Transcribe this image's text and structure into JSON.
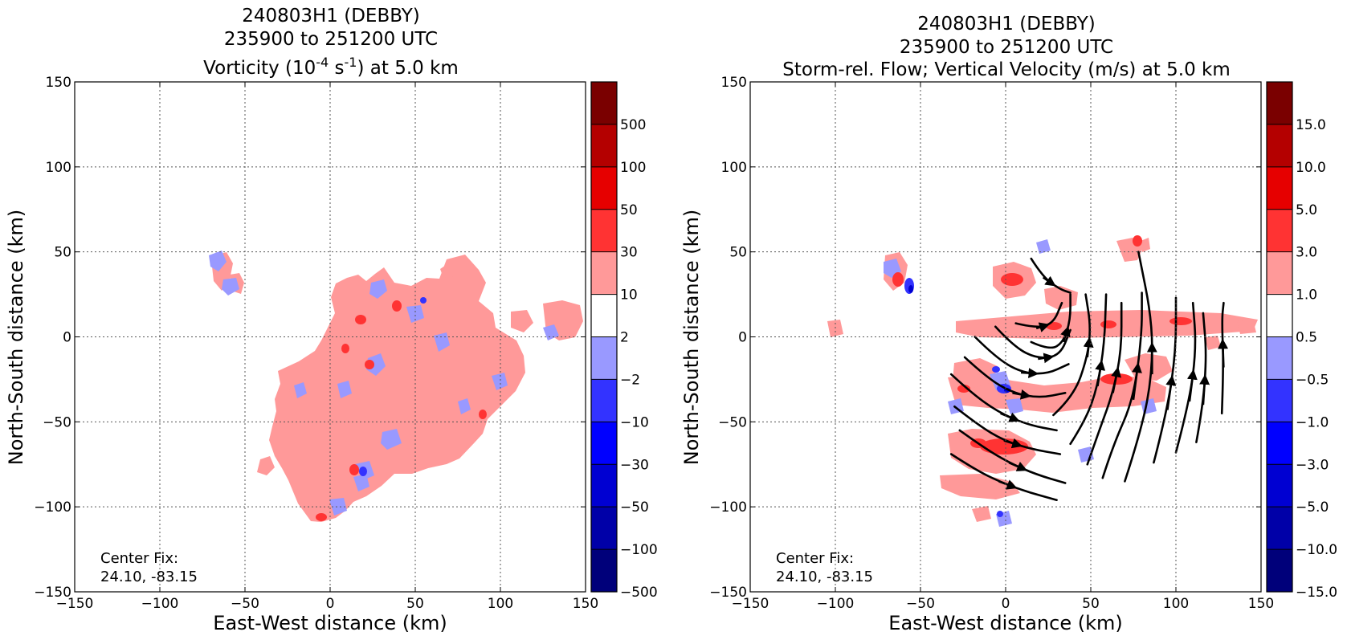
{
  "chart_data": [
    {
      "type": "heatmap",
      "title_lines": [
        "240803H1 (DEBBY)",
        "235900 to 251200 UTC"
      ],
      "title_var": {
        "pre": "Vorticity (10",
        "exp1": "-4",
        "mid": " s",
        "exp2": "-1",
        "post": ") at 5.0 km"
      },
      "xlabel": "East-West distance (km)",
      "ylabel": "North-South distance (km)",
      "xlim": [
        -150,
        150
      ],
      "ylim": [
        -150,
        150
      ],
      "xticks": [
        "−150",
        "−100",
        "−50",
        "0",
        "50",
        "100",
        "150"
      ],
      "yticks": [
        "−150",
        "−100",
        "−50",
        "0",
        "50",
        "100",
        "150"
      ],
      "grid": true,
      "colorbar": {
        "levels": [
          "−500",
          "−100",
          "−50",
          "−30",
          "−10",
          "−2",
          "2",
          "10",
          "30",
          "50",
          "100",
          "500"
        ],
        "colors": [
          "#00007a",
          "#0000a8",
          "#0000d2",
          "#0000ff",
          "#3333ff",
          "#9999ff",
          "#ffffff",
          "#ff9999",
          "#ff3333",
          "#e60000",
          "#b40000",
          "#7a0000"
        ]
      },
      "center_fix": {
        "label": "Center Fix:",
        "value": "24.10, -83.15"
      }
    },
    {
      "type": "heatmap",
      "title_lines": [
        "240803H1 (DEBBY)",
        "235900 to 251200 UTC"
      ],
      "title_var": {
        "pre": "Storm-rel. Flow; Vertical Velocity (m/s) at 5.0 km"
      },
      "xlabel": "East-West distance (km)",
      "ylabel": "North-South distance (km)",
      "xlim": [
        -150,
        150
      ],
      "ylim": [
        -150,
        150
      ],
      "xticks": [
        "−150",
        "−100",
        "−50",
        "0",
        "50",
        "100",
        "150"
      ],
      "yticks": [
        "−150",
        "−100",
        "−50",
        "0",
        "50",
        "100",
        "150"
      ],
      "grid": true,
      "colorbar": {
        "levels": [
          "−15.0",
          "−10.0",
          "−5.0",
          "−3.0",
          "−1.0",
          "−0.5",
          "0.5",
          "1.0",
          "3.0",
          "5.0",
          "10.0",
          "15.0"
        ],
        "colors": [
          "#00007a",
          "#0000a8",
          "#0000d2",
          "#0000ff",
          "#3333ff",
          "#9999ff",
          "#ffffff",
          "#ff9999",
          "#ff3333",
          "#e60000",
          "#b40000",
          "#7a0000"
        ]
      },
      "streamlines": [
        [
          [
            -32,
            -69
          ],
          [
            -18,
            -78
          ],
          [
            -4,
            -85
          ],
          [
            12,
            -91
          ],
          [
            30,
            -96
          ]
        ],
        [
          [
            -27,
            -55
          ],
          [
            -13,
            -65
          ],
          [
            2,
            -74
          ],
          [
            18,
            -81
          ],
          [
            35,
            -86
          ]
        ],
        [
          [
            -30,
            -41
          ],
          [
            -16,
            -52
          ],
          [
            -1,
            -61
          ],
          [
            15,
            -66
          ],
          [
            32,
            -69
          ]
        ],
        [
          [
            -32,
            -22
          ],
          [
            -19,
            -34
          ],
          [
            -3,
            -45
          ],
          [
            14,
            -52
          ],
          [
            30,
            -55
          ]
        ],
        [
          [
            -24,
            -12
          ],
          [
            -11,
            -24
          ],
          [
            4,
            -33
          ],
          [
            20,
            -36
          ],
          [
            35,
            -33
          ]
        ],
        [
          [
            -18,
            0
          ],
          [
            -6,
            -12
          ],
          [
            9,
            -21
          ],
          [
            24,
            -22
          ],
          [
            37,
            -16
          ]
        ],
        [
          [
            -6,
            6
          ],
          [
            5,
            -6
          ],
          [
            19,
            -13
          ],
          [
            32,
            -11
          ],
          [
            38,
            4
          ]
        ],
        [
          [
            6,
            8
          ],
          [
            18,
            5
          ],
          [
            28,
            8
          ],
          [
            33,
            20
          ]
        ],
        [
          [
            15,
            46
          ],
          [
            22,
            35
          ],
          [
            32,
            28
          ],
          [
            38,
            26
          ]
        ],
        [
          [
            15,
            -3
          ],
          [
            26,
            -8
          ],
          [
            34,
            -3
          ],
          [
            38,
            10
          ],
          [
            38,
            25
          ]
        ],
        [
          [
            28,
            -46
          ],
          [
            40,
            -35
          ],
          [
            48,
            -12
          ],
          [
            50,
            6
          ],
          [
            47,
            25
          ]
        ],
        [
          [
            38,
            -63
          ],
          [
            47,
            -49
          ],
          [
            54,
            -29
          ],
          [
            58,
            -4
          ],
          [
            59,
            25
          ]
        ],
        [
          [
            48,
            -75
          ],
          [
            55,
            -55
          ],
          [
            63,
            -33
          ],
          [
            68,
            -8
          ],
          [
            68,
            20
          ]
        ],
        [
          [
            57,
            -83
          ],
          [
            63,
            -64
          ],
          [
            75,
            -37
          ],
          [
            80,
            1
          ],
          [
            80,
            26
          ]
        ],
        [
          [
            70,
            -85
          ],
          [
            80,
            -54
          ],
          [
            86,
            -22
          ],
          [
            86,
            10
          ],
          [
            78,
            50
          ]
        ],
        [
          [
            87,
            -74
          ],
          [
            95,
            -43
          ],
          [
            100,
            -8
          ],
          [
            100,
            23
          ]
        ],
        [
          [
            100,
            -68
          ],
          [
            108,
            -38
          ],
          [
            112,
            -6
          ],
          [
            110,
            20
          ]
        ],
        [
          [
            112,
            -62
          ],
          [
            116,
            -40
          ],
          [
            118,
            -10
          ],
          [
            116,
            14
          ]
        ],
        [
          [
            127,
            -45
          ],
          [
            128,
            -18
          ],
          [
            127,
            10
          ],
          [
            128,
            20
          ]
        ]
      ],
      "center_fix": {
        "label": "Center Fix:",
        "value": "24.10, -83.15"
      }
    }
  ]
}
